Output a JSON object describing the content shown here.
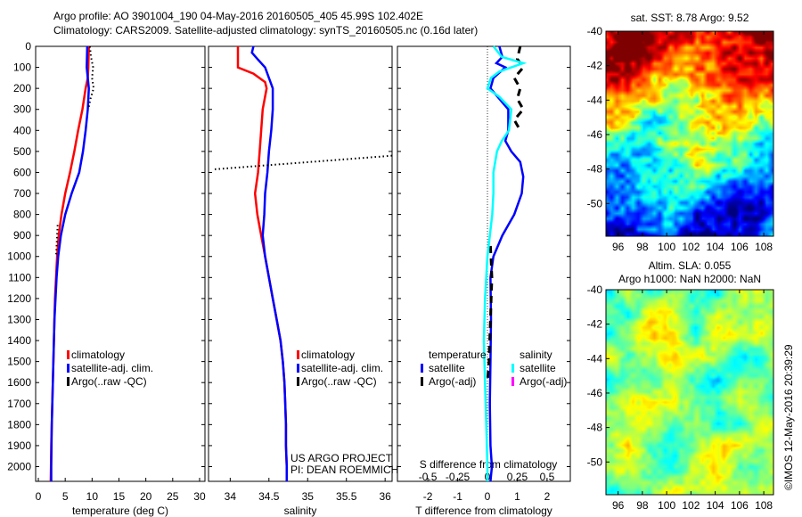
{
  "header": {
    "line1": "Argo profile: AO 3901004_190 04-May-2016 20160505_405 45.99S 102.402E",
    "line2": "Climatology: CARS2009. Satellite-adjusted climatology: synTS_20160505.nc (0.16d later)"
  },
  "footer": {
    "project": "US ARGO PROJECT",
    "pi": "PI: DEAN ROEMMICH",
    "stamp": "©IMOS 12-May-2016 20:39:29"
  },
  "chart_data": [
    {
      "type": "line",
      "id": "temperature",
      "xlabel": "temperature (deg C)",
      "ylabel": "",
      "xlim": [
        -0.5,
        31
      ],
      "ylim": [
        0,
        2070
      ],
      "xticks": [
        0,
        5,
        10,
        15,
        20,
        25,
        30
      ],
      "xtick_labels": [
        "0",
        "5",
        "10",
        "15",
        "20",
        "25",
        "30"
      ],
      "yticks": [
        0,
        100,
        200,
        300,
        400,
        500,
        600,
        700,
        800,
        900,
        1000,
        1100,
        1200,
        1300,
        1400,
        1500,
        1600,
        1700,
        1800,
        1900,
        2000
      ],
      "ytick_labels": [
        "0",
        "100",
        "200",
        "300",
        "400",
        "500",
        "600",
        "700",
        "800",
        "900",
        "1000",
        "1100",
        "1200",
        "1300",
        "1400",
        "1500",
        "1600",
        "1700",
        "1800",
        "1900",
        "2000"
      ],
      "legend": [
        "climatology",
        "satellite-adj. clim.",
        "Argo(..raw -QC)"
      ],
      "series": [
        {
          "name": "climatology",
          "color": "#ff0000",
          "style": "solid",
          "points": [
            [
              9.4,
              0
            ],
            [
              9.3,
              100
            ],
            [
              9.2,
              150
            ],
            [
              8.8,
              200
            ],
            [
              8.2,
              300
            ],
            [
              7.4,
              400
            ],
            [
              6.7,
              500
            ],
            [
              5.9,
              600
            ],
            [
              5.0,
              700
            ],
            [
              4.3,
              800
            ],
            [
              3.8,
              900
            ],
            [
              3.5,
              1000
            ],
            [
              3.3,
              1100
            ],
            [
              3.1,
              1200
            ],
            [
              3.0,
              1300
            ],
            [
              2.9,
              1400
            ],
            [
              2.8,
              1500
            ],
            [
              2.7,
              1600
            ],
            [
              2.6,
              1700
            ],
            [
              2.5,
              1800
            ],
            [
              2.4,
              1900
            ],
            [
              2.35,
              2000
            ],
            [
              2.3,
              2070
            ]
          ]
        },
        {
          "name": "satellite-adj. clim.",
          "color": "#0000ff",
          "style": "solid",
          "points": [
            [
              9.1,
              0
            ],
            [
              9.0,
              100
            ],
            [
              9.2,
              150
            ],
            [
              9.4,
              200
            ],
            [
              9.2,
              300
            ],
            [
              8.8,
              400
            ],
            [
              8.3,
              500
            ],
            [
              7.6,
              600
            ],
            [
              6.2,
              700
            ],
            [
              5.0,
              800
            ],
            [
              4.2,
              900
            ],
            [
              3.7,
              1000
            ],
            [
              3.4,
              1100
            ],
            [
              3.2,
              1200
            ],
            [
              3.0,
              1300
            ],
            [
              2.9,
              1400
            ],
            [
              2.8,
              1500
            ],
            [
              2.7,
              1600
            ],
            [
              2.6,
              1700
            ],
            [
              2.5,
              1800
            ],
            [
              2.45,
              1900
            ],
            [
              2.4,
              2000
            ],
            [
              2.4,
              2070
            ]
          ]
        },
        {
          "name": "Argo(..raw -QC)",
          "color": "#000000",
          "style": "dotted",
          "points": [
            [
              9.6,
              0
            ],
            [
              9.8,
              50
            ],
            [
              10.2,
              100
            ],
            [
              10.0,
              150
            ],
            [
              10.3,
              200
            ],
            [
              9.7,
              250
            ],
            [
              9.3,
              300
            ]
          ]
        },
        {
          "name": "Argo(..raw -QC)",
          "color": "#000000",
          "style": "dotted",
          "points": [
            [
              3.6,
              850
            ],
            [
              3.4,
              950
            ],
            [
              3.3,
              1000
            ]
          ]
        }
      ]
    },
    {
      "type": "line",
      "id": "salinity",
      "xlabel": "salinity",
      "xlim": [
        33.72,
        36.09
      ],
      "ylim": [
        0,
        2070
      ],
      "xticks": [
        34,
        34.5,
        35,
        35.5,
        36
      ],
      "xtick_labels": [
        "34",
        "34.5",
        "35",
        "35.5",
        "36"
      ],
      "yticks": [
        0,
        100,
        200,
        300,
        400,
        500,
        600,
        700,
        800,
        900,
        1000,
        1100,
        1200,
        1300,
        1400,
        1500,
        1600,
        1700,
        1800,
        1900,
        2000
      ],
      "legend": [
        "climatology",
        "satellite-adj. clim.",
        "Argo(..raw -QC)"
      ],
      "series": [
        {
          "name": "climatology",
          "color": "#ff0000",
          "style": "solid",
          "points": [
            [
              34.1,
              0
            ],
            [
              34.1,
              100
            ],
            [
              34.3,
              130
            ],
            [
              34.45,
              170
            ],
            [
              34.47,
              200
            ],
            [
              34.42,
              300
            ],
            [
              34.4,
              400
            ],
            [
              34.38,
              500
            ],
            [
              34.36,
              600
            ],
            [
              34.32,
              700
            ],
            [
              34.35,
              800
            ],
            [
              34.4,
              900
            ],
            [
              34.45,
              1000
            ],
            [
              34.5,
              1100
            ],
            [
              34.55,
              1200
            ],
            [
              34.6,
              1300
            ],
            [
              34.65,
              1400
            ],
            [
              34.68,
              1500
            ],
            [
              34.7,
              1600
            ],
            [
              34.71,
              1700
            ],
            [
              34.72,
              1800
            ],
            [
              34.72,
              1900
            ],
            [
              34.73,
              2000
            ],
            [
              34.73,
              2070
            ]
          ]
        },
        {
          "name": "satellite-adj. clim.",
          "color": "#0000ff",
          "style": "solid",
          "points": [
            [
              34.3,
              0
            ],
            [
              34.28,
              30
            ],
            [
              34.35,
              60
            ],
            [
              34.45,
              100
            ],
            [
              34.5,
              150
            ],
            [
              34.55,
              200
            ],
            [
              34.55,
              300
            ],
            [
              34.53,
              400
            ],
            [
              34.5,
              500
            ],
            [
              34.48,
              600
            ],
            [
              34.45,
              700
            ],
            [
              34.44,
              800
            ],
            [
              34.42,
              900
            ],
            [
              34.45,
              1000
            ],
            [
              34.5,
              1100
            ],
            [
              34.55,
              1200
            ],
            [
              34.6,
              1300
            ],
            [
              34.65,
              1400
            ],
            [
              34.68,
              1500
            ],
            [
              34.7,
              1600
            ],
            [
              34.71,
              1700
            ],
            [
              34.72,
              1800
            ],
            [
              34.72,
              1900
            ],
            [
              34.73,
              2000
            ],
            [
              34.73,
              2070
            ]
          ]
        },
        {
          "name": "Argo(..raw -QC)",
          "color": "#000000",
          "style": "dotted",
          "points": [
            [
              33.8,
              585
            ],
            [
              36.1,
              520
            ]
          ]
        }
      ]
    },
    {
      "type": "line",
      "id": "difference",
      "xlabel": "T difference from climatology",
      "x2label": "S difference from climatology",
      "xlim": [
        -3.02,
        2.78
      ],
      "ylim": [
        0,
        2070
      ],
      "xticks": [
        -2,
        -1,
        0,
        1,
        2
      ],
      "xtick_labels": [
        "-2",
        "-1",
        "0",
        "1",
        "2"
      ],
      "x2ticks": [
        -0.5,
        -0.25,
        0,
        0.25,
        0.5
      ],
      "x2tick_labels": [
        "-0.5",
        "-0.25",
        "0",
        "0.25",
        "0.5"
      ],
      "s_to_t_factor": 4,
      "yticks": [
        0,
        100,
        200,
        300,
        400,
        500,
        600,
        700,
        800,
        900,
        1000,
        1100,
        1200,
        1300,
        1400,
        1500,
        1600,
        1700,
        1800,
        1900,
        2000
      ],
      "legend_groups": [
        {
          "title": "temperature",
          "items": [
            {
              "label": "satellite",
              "color": "#0000ff"
            },
            {
              "label": "Argo(-adj)",
              "color": "#000000"
            }
          ]
        },
        {
          "title": "salinity",
          "items": [
            {
              "label": "satellite",
              "color": "#00ffff"
            },
            {
              "label": "Argo(-adj)",
              "color": "#ff00ff"
            }
          ]
        }
      ],
      "series": [
        {
          "name": "temperature satellite",
          "axis": "T",
          "color": "#0000ff",
          "style": "solid",
          "points": [
            [
              0.4,
              0
            ],
            [
              0.5,
              50
            ],
            [
              0.3,
              80
            ],
            [
              0.6,
              100
            ],
            [
              0.2,
              150
            ],
            [
              0.1,
              200
            ],
            [
              0.4,
              250
            ],
            [
              0.7,
              300
            ],
            [
              0.7,
              400
            ],
            [
              0.6,
              450
            ],
            [
              0.8,
              500
            ],
            [
              1.1,
              550
            ],
            [
              1.2,
              620
            ],
            [
              1.15,
              700
            ],
            [
              0.9,
              800
            ],
            [
              0.5,
              900
            ],
            [
              0.2,
              1000
            ],
            [
              0.1,
              1100
            ],
            [
              0.12,
              1300
            ],
            [
              0.1,
              1500
            ],
            [
              0.08,
              1700
            ],
            [
              0.1,
              1900
            ],
            [
              0.15,
              2000
            ],
            [
              0.1,
              2070
            ]
          ]
        },
        {
          "name": "temperature Argo",
          "axis": "T",
          "color": "#000000",
          "style": "dashed",
          "points": [
            [
              1.1,
              0
            ],
            [
              1.0,
              60
            ],
            [
              1.2,
              100
            ],
            [
              0.9,
              150
            ],
            [
              1.1,
              200
            ],
            [
              1.0,
              250
            ],
            [
              1.2,
              300
            ],
            [
              0.9,
              350
            ],
            [
              1.1,
              400
            ]
          ]
        },
        {
          "name": "temperature Argo",
          "axis": "T",
          "color": "#000000",
          "style": "dashed",
          "points": [
            [
              0.1,
              950
            ],
            [
              0.15,
              1100
            ],
            [
              0.1,
              1300
            ],
            [
              0.05,
              1500
            ],
            [
              0.0,
              1600
            ]
          ]
        },
        {
          "name": "salinity satellite",
          "axis": "S",
          "color": "#00ffff",
          "style": "solid",
          "points": [
            [
              0.05,
              0
            ],
            [
              0.12,
              50
            ],
            [
              0.3,
              80
            ],
            [
              0.2,
              100
            ],
            [
              0.1,
              120
            ],
            [
              0.03,
              150
            ],
            [
              0.0,
              200
            ],
            [
              0.1,
              240
            ],
            [
              0.2,
              300
            ],
            [
              0.18,
              400
            ],
            [
              0.12,
              450
            ],
            [
              0.08,
              500
            ],
            [
              0.05,
              600
            ],
            [
              0.05,
              700
            ],
            [
              0.04,
              800
            ],
            [
              0.02,
              900
            ],
            [
              0.0,
              1000
            ],
            [
              -0.02,
              1200
            ],
            [
              -0.03,
              1400
            ],
            [
              -0.02,
              1600
            ],
            [
              -0.01,
              1800
            ],
            [
              0.0,
              2000
            ],
            [
              0.0,
              2070
            ]
          ]
        }
      ]
    },
    {
      "type": "heatmap",
      "id": "sst-map",
      "title": "sat. SST: 8.78 Argo: 9.52",
      "xticks": [
        96,
        98,
        100,
        102,
        104,
        106,
        108
      ],
      "xtick_labels": [
        "96",
        "98",
        "100",
        "102",
        "104",
        "106",
        "108"
      ],
      "yticks": [
        -40,
        -42,
        -44,
        -46,
        -48,
        -50
      ],
      "ytick_labels": [
        "-40",
        "-42",
        "-44",
        "-46",
        "-48",
        "-50"
      ],
      "xlim": [
        95,
        108.8
      ],
      "ylim": [
        -51.9,
        -40
      ],
      "colormap": "jet"
    },
    {
      "type": "heatmap",
      "id": "sla-map",
      "title": "Altim. SLA: 0.055",
      "subtitle": "Argo h1000: NaN h2000: NaN",
      "xticks": [
        96,
        98,
        100,
        102,
        104,
        106,
        108
      ],
      "xtick_labels": [
        "96",
        "98",
        "100",
        "102",
        "104",
        "106",
        "108"
      ],
      "yticks": [
        -40,
        -42,
        -44,
        -46,
        -48,
        -50
      ],
      "ytick_labels": [
        "-40",
        "-42",
        "-44",
        "-46",
        "-48",
        "-50"
      ],
      "xlim": [
        95,
        108.8
      ],
      "ylim": [
        -51.9,
        -40
      ],
      "colormap": "jet"
    }
  ]
}
